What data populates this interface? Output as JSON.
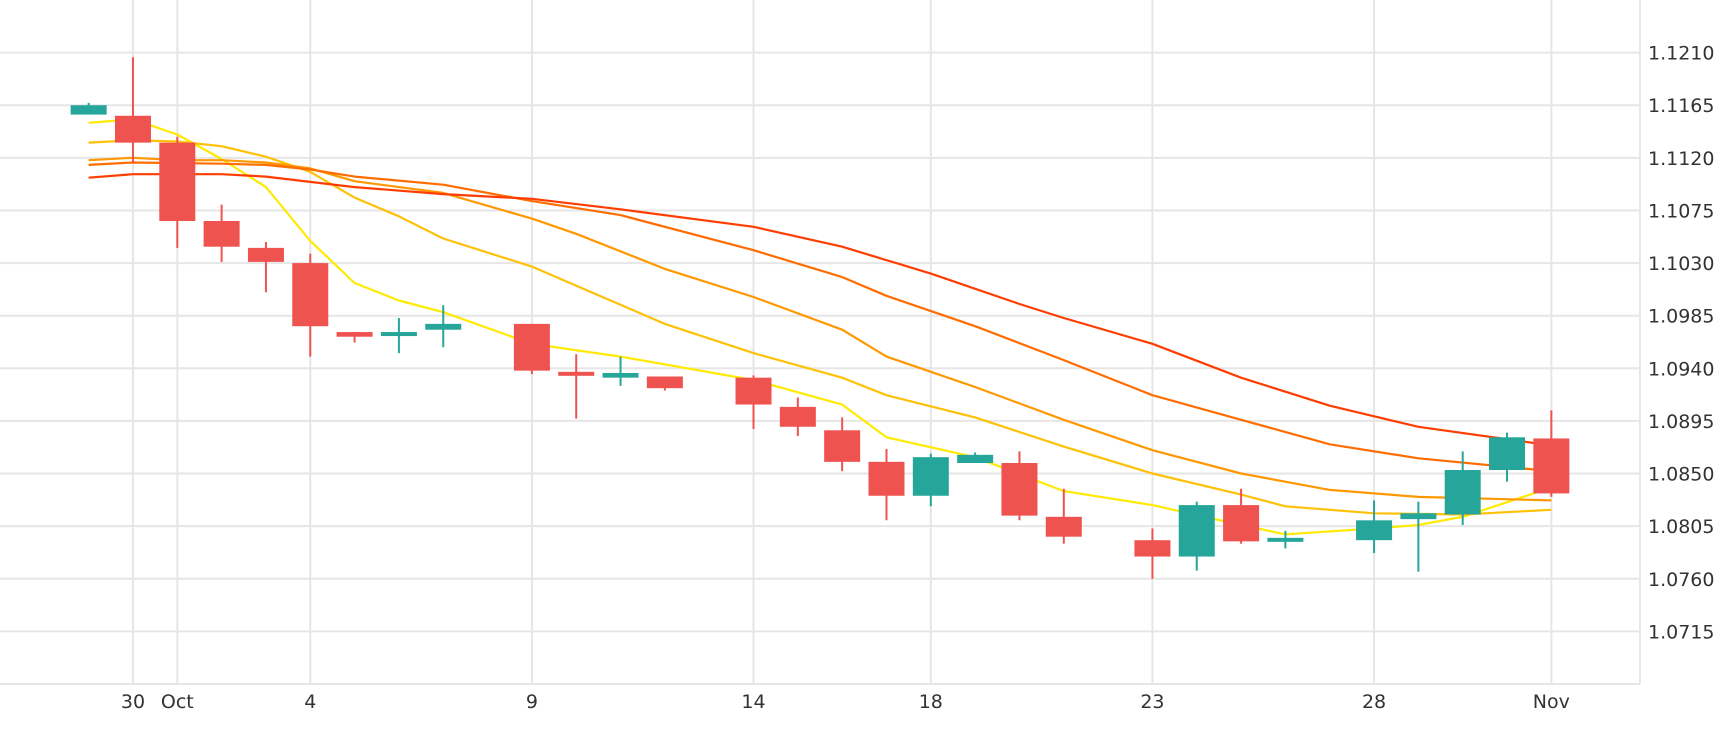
{
  "chart_data": {
    "type": "candlestick",
    "title": "",
    "xlabel": "",
    "ylabel": "",
    "x_tick_labels": [
      {
        "date": "2023-09-30",
        "label": "30"
      },
      {
        "date": "2023-10-01",
        "label": "Oct"
      },
      {
        "date": "2023-10-04",
        "label": "4"
      },
      {
        "date": "2023-10-09",
        "label": "9"
      },
      {
        "date": "2023-10-14",
        "label": "14"
      },
      {
        "date": "2023-10-18",
        "label": "18"
      },
      {
        "date": "2023-10-23",
        "label": "23"
      },
      {
        "date": "2023-10-28",
        "label": "28"
      },
      {
        "date": "2023-11-01",
        "label": "Nov"
      }
    ],
    "y_ticks": [
      "1.0715",
      "1.0760",
      "1.0805",
      "1.0850",
      "1.0895",
      "1.0940",
      "1.0985",
      "1.1030",
      "1.1075",
      "1.1120",
      "1.1165",
      "1.1210"
    ],
    "ylim": [
      1.067,
      1.1255
    ],
    "xlim": [
      "2023-09-27",
      "2023-11-03"
    ],
    "grid": true,
    "colors": {
      "up": "#26a69a",
      "down": "#ef5350",
      "ma_lines": [
        "#ffea00",
        "#ffc107",
        "#ff9800",
        "#ff6d00",
        "#ff3d00"
      ],
      "grid": "#e6e6e6"
    },
    "candles": [
      {
        "date": "2023-09-29",
        "open": 1.1157,
        "high": 1.1167,
        "low": 1.1157,
        "close": 1.1165
      },
      {
        "date": "2023-09-30",
        "open": 1.1156,
        "high": 1.1206,
        "low": 1.1116,
        "close": 1.1133
      },
      {
        "date": "2023-10-01",
        "open": 1.1133,
        "high": 1.1138,
        "low": 1.1043,
        "close": 1.1066
      },
      {
        "date": "2023-10-02",
        "open": 1.1066,
        "high": 1.108,
        "low": 1.1031,
        "close": 1.1044
      },
      {
        "date": "2023-10-03",
        "open": 1.1043,
        "high": 1.1048,
        "low": 1.1005,
        "close": 1.1031
      },
      {
        "date": "2023-10-04",
        "open": 1.103,
        "high": 1.1038,
        "low": 1.095,
        "close": 1.0976
      },
      {
        "date": "2023-10-05",
        "open": 1.0971,
        "high": 1.0971,
        "low": 1.0962,
        "close": 1.0967
      },
      {
        "date": "2023-10-06",
        "open": 1.097,
        "high": 1.0983,
        "low": 1.0953,
        "close": 1.0971
      },
      {
        "date": "2023-10-07",
        "open": 1.0973,
        "high": 1.0994,
        "low": 1.0958,
        "close": 1.0978
      },
      {
        "date": "2023-10-09",
        "open": 1.0978,
        "high": 1.0978,
        "low": 1.0935,
        "close": 1.0938
      },
      {
        "date": "2023-10-10",
        "open": 1.0937,
        "high": 1.0952,
        "low": 1.0897,
        "close": 1.0935
      },
      {
        "date": "2023-10-11",
        "open": 1.0932,
        "high": 1.095,
        "low": 1.0925,
        "close": 1.0936
      },
      {
        "date": "2023-10-12",
        "open": 1.0933,
        "high": 1.0933,
        "low": 1.0921,
        "close": 1.0923
      },
      {
        "date": "2023-10-14",
        "open": 1.0932,
        "high": 1.0934,
        "low": 1.0888,
        "close": 1.0909
      },
      {
        "date": "2023-10-15",
        "open": 1.0907,
        "high": 1.0915,
        "low": 1.0882,
        "close": 1.089
      },
      {
        "date": "2023-10-16",
        "open": 1.0887,
        "high": 1.0898,
        "low": 1.0852,
        "close": 1.086
      },
      {
        "date": "2023-10-17",
        "open": 1.086,
        "high": 1.0871,
        "low": 1.081,
        "close": 1.0831
      },
      {
        "date": "2023-10-18",
        "open": 1.0831,
        "high": 1.0867,
        "low": 1.0822,
        "close": 1.0864
      },
      {
        "date": "2023-10-19",
        "open": 1.0859,
        "high": 1.0868,
        "low": 1.0859,
        "close": 1.0866
      },
      {
        "date": "2023-10-20",
        "open": 1.0859,
        "high": 1.0869,
        "low": 1.081,
        "close": 1.0814
      },
      {
        "date": "2023-10-21",
        "open": 1.0813,
        "high": 1.0837,
        "low": 1.079,
        "close": 1.0796
      },
      {
        "date": "2023-10-23",
        "open": 1.0793,
        "high": 1.0803,
        "low": 1.076,
        "close": 1.0779
      },
      {
        "date": "2023-10-24",
        "open": 1.0779,
        "high": 1.0826,
        "low": 1.0767,
        "close": 1.0823
      },
      {
        "date": "2023-10-25",
        "open": 1.0823,
        "high": 1.0837,
        "low": 1.079,
        "close": 1.0792
      },
      {
        "date": "2023-10-26",
        "open": 1.0793,
        "high": 1.0801,
        "low": 1.0786,
        "close": 1.0795
      },
      {
        "date": "2023-10-28",
        "open": 1.0793,
        "high": 1.0827,
        "low": 1.0782,
        "close": 1.081
      },
      {
        "date": "2023-10-29",
        "open": 1.0811,
        "high": 1.0826,
        "low": 1.0766,
        "close": 1.0816
      },
      {
        "date": "2023-10-30",
        "open": 1.0815,
        "high": 1.0869,
        "low": 1.0806,
        "close": 1.0853
      },
      {
        "date": "2023-10-31",
        "open": 1.0853,
        "high": 1.0885,
        "low": 1.0843,
        "close": 1.0881
      },
      {
        "date": "2023-11-01",
        "open": 1.088,
        "high": 1.0904,
        "low": 1.083,
        "close": 1.0833
      }
    ],
    "series": [
      {
        "values": [
          [
            "2023-09-29",
            1.115
          ],
          [
            "2023-09-30",
            1.1153
          ],
          [
            "2023-10-01",
            1.114
          ],
          [
            "2023-10-02",
            1.1119
          ],
          [
            "2023-10-03",
            1.1095
          ],
          [
            "2023-10-04",
            1.1049
          ],
          [
            "2023-10-05",
            1.1013
          ],
          [
            "2023-10-06",
            1.0998
          ],
          [
            "2023-10-07",
            1.0988
          ],
          [
            "2023-10-09",
            1.0961
          ],
          [
            "2023-10-11",
            1.095
          ],
          [
            "2023-10-14",
            1.093
          ],
          [
            "2023-10-16",
            1.0909
          ],
          [
            "2023-10-17",
            1.0881
          ],
          [
            "2023-10-19",
            1.0864
          ],
          [
            "2023-10-21",
            1.0835
          ],
          [
            "2023-10-23",
            1.0823
          ],
          [
            "2023-10-25",
            1.0806
          ],
          [
            "2023-10-26",
            1.0798
          ],
          [
            "2023-10-28",
            1.0803
          ],
          [
            "2023-10-29",
            1.0806
          ],
          [
            "2023-10-30",
            1.0813
          ],
          [
            "2023-11-01",
            1.0838
          ]
        ]
      },
      {
        "values": [
          [
            "2023-09-29",
            1.1133
          ],
          [
            "2023-09-30",
            1.1135
          ],
          [
            "2023-10-01",
            1.1134
          ],
          [
            "2023-10-02",
            1.113
          ],
          [
            "2023-10-03",
            1.1121
          ],
          [
            "2023-10-04",
            1.1108
          ],
          [
            "2023-10-05",
            1.1086
          ],
          [
            "2023-10-06",
            1.107
          ],
          [
            "2023-10-07",
            1.1051
          ],
          [
            "2023-10-09",
            1.1027
          ],
          [
            "2023-10-12",
            1.0978
          ],
          [
            "2023-10-14",
            1.0953
          ],
          [
            "2023-10-16",
            1.0932
          ],
          [
            "2023-10-17",
            1.0917
          ],
          [
            "2023-10-19",
            1.0898
          ],
          [
            "2023-10-21",
            1.0873
          ],
          [
            "2023-10-23",
            1.085
          ],
          [
            "2023-10-25",
            1.0832
          ],
          [
            "2023-10-26",
            1.0822
          ],
          [
            "2023-10-28",
            1.0816
          ],
          [
            "2023-10-30",
            1.0815
          ],
          [
            "2023-11-01",
            1.0819
          ]
        ]
      },
      {
        "values": [
          [
            "2023-09-29",
            1.1118
          ],
          [
            "2023-09-30",
            1.112
          ],
          [
            "2023-10-01",
            1.1118
          ],
          [
            "2023-10-02",
            1.1118
          ],
          [
            "2023-10-03",
            1.1116
          ],
          [
            "2023-10-04",
            1.1111
          ],
          [
            "2023-10-05",
            1.11
          ],
          [
            "2023-10-07",
            1.109
          ],
          [
            "2023-10-09",
            1.1068
          ],
          [
            "2023-10-10",
            1.1055
          ],
          [
            "2023-10-12",
            1.1025
          ],
          [
            "2023-10-14",
            1.1001
          ],
          [
            "2023-10-16",
            1.0973
          ],
          [
            "2023-10-17",
            1.095
          ],
          [
            "2023-10-19",
            1.0924
          ],
          [
            "2023-10-21",
            1.0896
          ],
          [
            "2023-10-23",
            1.087
          ],
          [
            "2023-10-25",
            1.085
          ],
          [
            "2023-10-27",
            1.0836
          ],
          [
            "2023-10-29",
            1.083
          ],
          [
            "2023-11-01",
            1.0827
          ]
        ]
      },
      {
        "values": [
          [
            "2023-09-29",
            1.1114
          ],
          [
            "2023-09-30",
            1.1116
          ],
          [
            "2023-10-02",
            1.1115
          ],
          [
            "2023-10-03",
            1.1114
          ],
          [
            "2023-10-04",
            1.111
          ],
          [
            "2023-10-05",
            1.1104
          ],
          [
            "2023-10-07",
            1.1097
          ],
          [
            "2023-10-09",
            1.1083
          ],
          [
            "2023-10-11",
            1.1071
          ],
          [
            "2023-10-14",
            1.1041
          ],
          [
            "2023-10-16",
            1.1018
          ],
          [
            "2023-10-17",
            1.1002
          ],
          [
            "2023-10-19",
            1.0976
          ],
          [
            "2023-10-21",
            1.0947
          ],
          [
            "2023-10-23",
            1.0917
          ],
          [
            "2023-10-25",
            1.0896
          ],
          [
            "2023-10-27",
            1.0875
          ],
          [
            "2023-10-29",
            1.0863
          ],
          [
            "2023-11-01",
            1.0852
          ]
        ]
      },
      {
        "values": [
          [
            "2023-09-29",
            1.1103
          ],
          [
            "2023-09-30",
            1.1106
          ],
          [
            "2023-10-02",
            1.1106
          ],
          [
            "2023-10-03",
            1.1104
          ],
          [
            "2023-10-05",
            1.1095
          ],
          [
            "2023-10-07",
            1.1089
          ],
          [
            "2023-10-09",
            1.1085
          ],
          [
            "2023-10-11",
            1.1076
          ],
          [
            "2023-10-14",
            1.1061
          ],
          [
            "2023-10-16",
            1.1044
          ],
          [
            "2023-10-18",
            1.1021
          ],
          [
            "2023-10-20",
            1.0995
          ],
          [
            "2023-10-21",
            1.0983
          ],
          [
            "2023-10-23",
            1.0961
          ],
          [
            "2023-10-25",
            1.0932
          ],
          [
            "2023-10-27",
            1.0908
          ],
          [
            "2023-10-29",
            1.089
          ],
          [
            "2023-11-01",
            1.0874
          ]
        ]
      }
    ]
  }
}
